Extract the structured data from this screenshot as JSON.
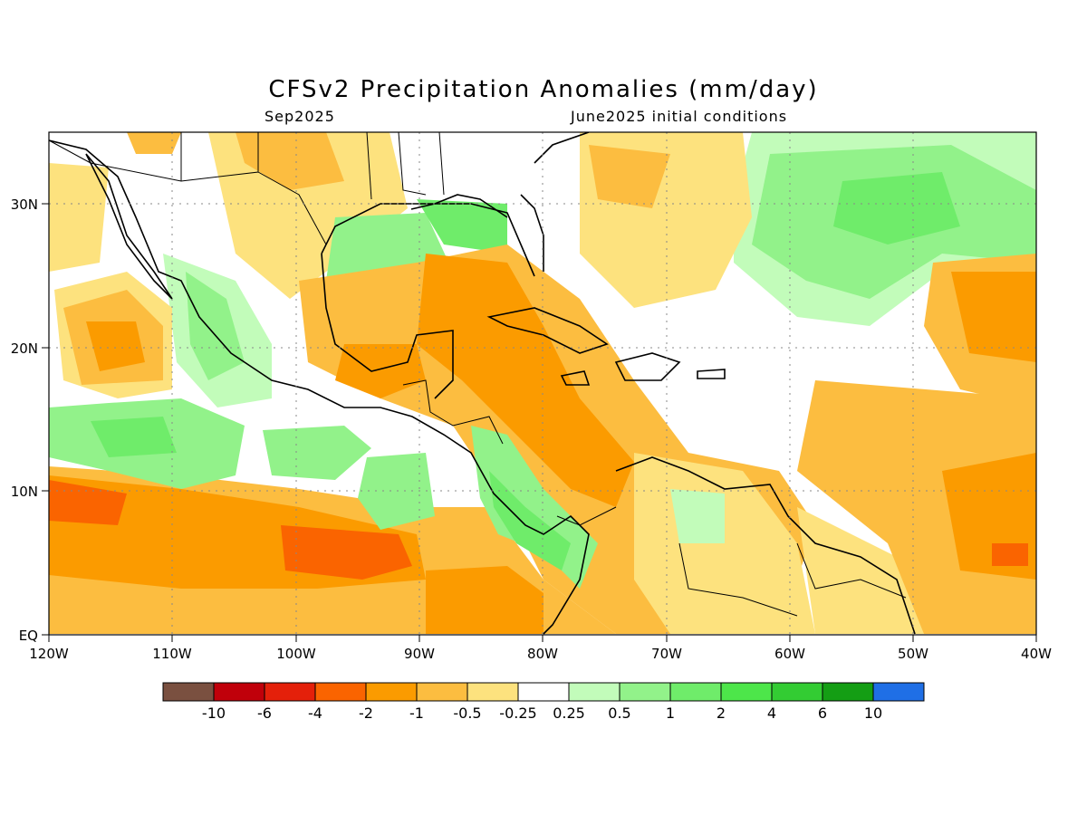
{
  "title": "CFSv2 Precipitation Anomalies (mm/day)",
  "subtitle_left": "Sep2025",
  "subtitle_right": "June2025 initial conditions",
  "axes": {
    "y_ticks": [
      "EQ",
      "10N",
      "20N",
      "30N"
    ],
    "x_ticks": [
      "120W",
      "110W",
      "100W",
      "90W",
      "80W",
      "70W",
      "60W",
      "50W",
      "40W"
    ]
  },
  "map": {
    "region": "Central America, Caribbean and Gulf of Mexico",
    "lon_range": [
      -120,
      -40
    ],
    "lat_range": [
      0,
      35
    ],
    "grid": "dotted"
  },
  "colorbar": {
    "labels": [
      "-10",
      "-6",
      "-4",
      "-2",
      "-1",
      "-0.5",
      "-0.25",
      "0.25",
      "0.5",
      "1",
      "2",
      "4",
      "6",
      "10"
    ],
    "colors": [
      "#7a5040",
      "#c0000a",
      "#e4200a",
      "#fa6400",
      "#fb9b00",
      "#fcbd40",
      "#fde27e",
      "#ffffff",
      "#c2fcba",
      "#92f28a",
      "#6fec6a",
      "#4de64a",
      "#33cc33",
      "#149e14",
      "#1f6fe6"
    ]
  }
}
